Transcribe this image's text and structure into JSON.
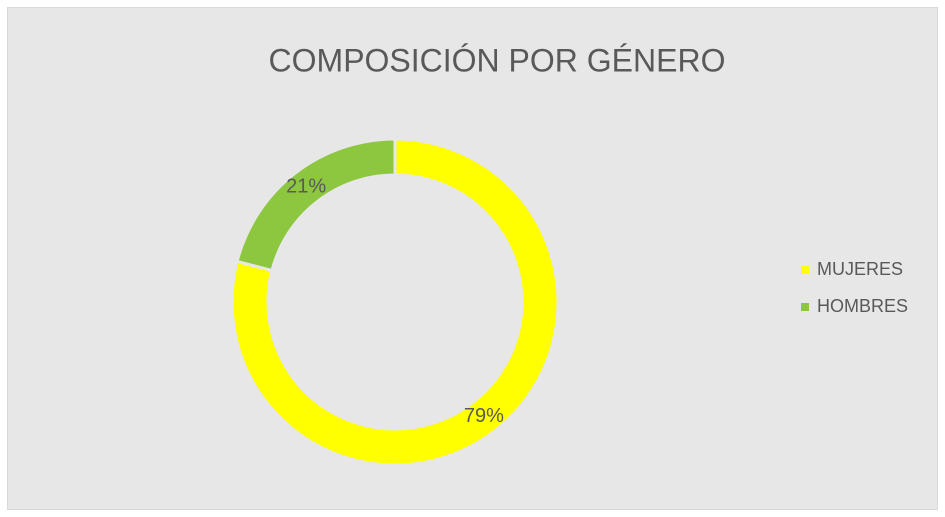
{
  "chart_data": {
    "type": "pie",
    "title": "COMPOSICIÓN POR GÉNERO",
    "categories": [
      "MUJERES",
      "HOMBRES"
    ],
    "values": [
      79,
      21
    ],
    "value_labels": [
      "79%",
      "21%"
    ],
    "colors": [
      "#ffff00",
      "#8dc63f"
    ],
    "donut": true,
    "legend": "right"
  }
}
